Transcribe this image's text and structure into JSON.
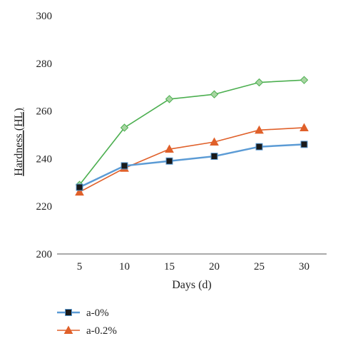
{
  "chart_data": {
    "type": "line",
    "xlabel": "Days (d)",
    "ylabel": "Hardness (HL)",
    "x": [
      5,
      10,
      15,
      20,
      25,
      30
    ],
    "ylim": [
      200,
      300
    ],
    "yticks": [
      200,
      220,
      240,
      260,
      280,
      300
    ],
    "grid": false,
    "legend_position": "bottom-left",
    "series": [
      {
        "name": "a-0%",
        "color": "#5b9bd5",
        "marker": "square",
        "marker_color": "#1a1a1a",
        "values": [
          228,
          237,
          239,
          241,
          245,
          246
        ]
      },
      {
        "name": "a-0.2%",
        "color": "#e0602a",
        "marker": "triangle",
        "marker_color": "#e0602a",
        "values": [
          226,
          236,
          244,
          247,
          252,
          253
        ]
      },
      {
        "color": "#4caf50",
        "marker": "diamond",
        "marker_color": "#a8d5a2",
        "values": [
          229,
          253,
          265,
          267,
          272,
          273
        ]
      }
    ]
  }
}
